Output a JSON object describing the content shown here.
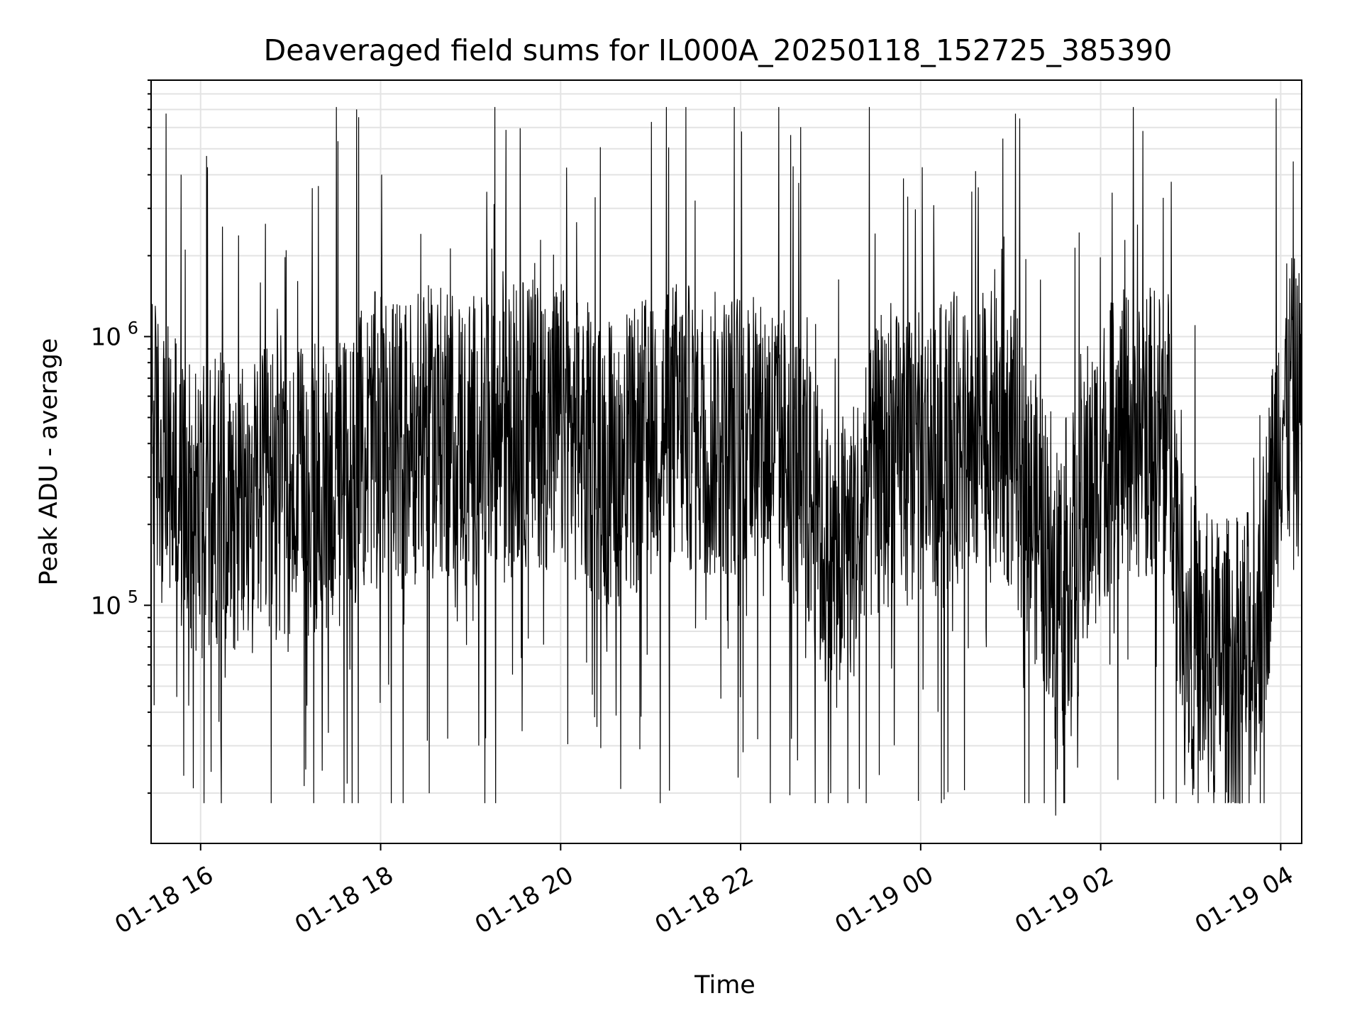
{
  "chart_data": {
    "type": "line",
    "title": "Deaveraged field sums for IL000A_20250118_152725_385390",
    "xlabel": "Time",
    "ylabel": "Peak ADU - average",
    "y_scale": "log",
    "ylim": [
      13000,
      9000000
    ],
    "x_start": "01-18 15:27",
    "x_end": "01-19 04:14",
    "x_ticks": [
      {
        "label": "01-18 16",
        "value": "01-18 16:00"
      },
      {
        "label": "01-18 18",
        "value": "01-18 18:00"
      },
      {
        "label": "01-18 20",
        "value": "01-18 20:00"
      },
      {
        "label": "01-18 22",
        "value": "01-18 22:00"
      },
      {
        "label": "01-19 00",
        "value": "01-19 00:00"
      },
      {
        "label": "01-19 02",
        "value": "01-19 02:00"
      },
      {
        "label": "01-19 04",
        "value": "01-19 04:00"
      }
    ],
    "y_ticks": [
      {
        "base": "10",
        "exp": "5",
        "value": 100000
      },
      {
        "base": "10",
        "exp": "6",
        "value": 1000000
      }
    ],
    "grid": true,
    "line_color": "#000000",
    "series": [
      {
        "x": [
          "01-18 15:27",
          "01-18 15:45",
          "01-18 16:00",
          "01-18 16:15",
          "01-18 16:30",
          "01-18 16:45",
          "01-18 17:00",
          "01-18 17:15",
          "01-18 17:30",
          "01-18 17:45",
          "01-18 18:00",
          "01-18 18:15",
          "01-18 18:30",
          "01-18 18:45",
          "01-18 19:00",
          "01-18 19:15",
          "01-18 19:30",
          "01-18 19:45",
          "01-18 20:00",
          "01-18 20:15",
          "01-18 20:30",
          "01-18 20:45",
          "01-18 21:00",
          "01-18 21:15",
          "01-18 21:30",
          "01-18 21:45",
          "01-18 22:00",
          "01-18 22:15",
          "01-18 22:30",
          "01-18 22:45",
          "01-18 23:00",
          "01-18 23:15",
          "01-18 23:30",
          "01-18 23:45",
          "01-19 00:00",
          "01-19 00:15",
          "01-19 00:30",
          "01-19 00:45",
          "01-19 01:00",
          "01-19 01:15",
          "01-19 01:30",
          "01-19 01:45",
          "01-19 02:00",
          "01-19 02:15",
          "01-19 02:30",
          "01-19 02:45",
          "01-19 03:00",
          "01-19 03:15",
          "01-19 03:30",
          "01-19 03:45",
          "01-19 04:00",
          "01-19 04:14"
        ],
        "y": [
          500000,
          300000,
          250000,
          300000,
          250000,
          300000,
          280000,
          300000,
          320000,
          400000,
          500000,
          450000,
          500000,
          500000,
          480000,
          450000,
          520000,
          550000,
          520000,
          450000,
          400000,
          380000,
          500000,
          550000,
          500000,
          480000,
          520000,
          500000,
          450000,
          300000,
          150000,
          200000,
          350000,
          400000,
          400000,
          450000,
          500000,
          480000,
          450000,
          250000,
          150000,
          180000,
          400000,
          480000,
          500000,
          500000,
          80000,
          70000,
          70000,
          80000,
          600000,
          600000
        ]
      }
    ],
    "annotated_extremes": [
      {
        "x": "01-18 15:47",
        "y": 4000000
      },
      {
        "x": "01-18 16:04",
        "y": 4700000
      },
      {
        "x": "01-18 16:07",
        "y": 24000
      },
      {
        "x": "01-18 17:44",
        "y": 7000000
      },
      {
        "x": "01-18 20:23",
        "y": 3300000
      },
      {
        "x": "01-18 22:35",
        "y": 4300000
      },
      {
        "x": "01-18 23:00",
        "y": 20000
      },
      {
        "x": "01-19 01:30",
        "y": 16500
      },
      {
        "x": "01-19 02:42",
        "y": 19000
      },
      {
        "x": "01-19 03:57",
        "y": 7700000
      }
    ]
  }
}
